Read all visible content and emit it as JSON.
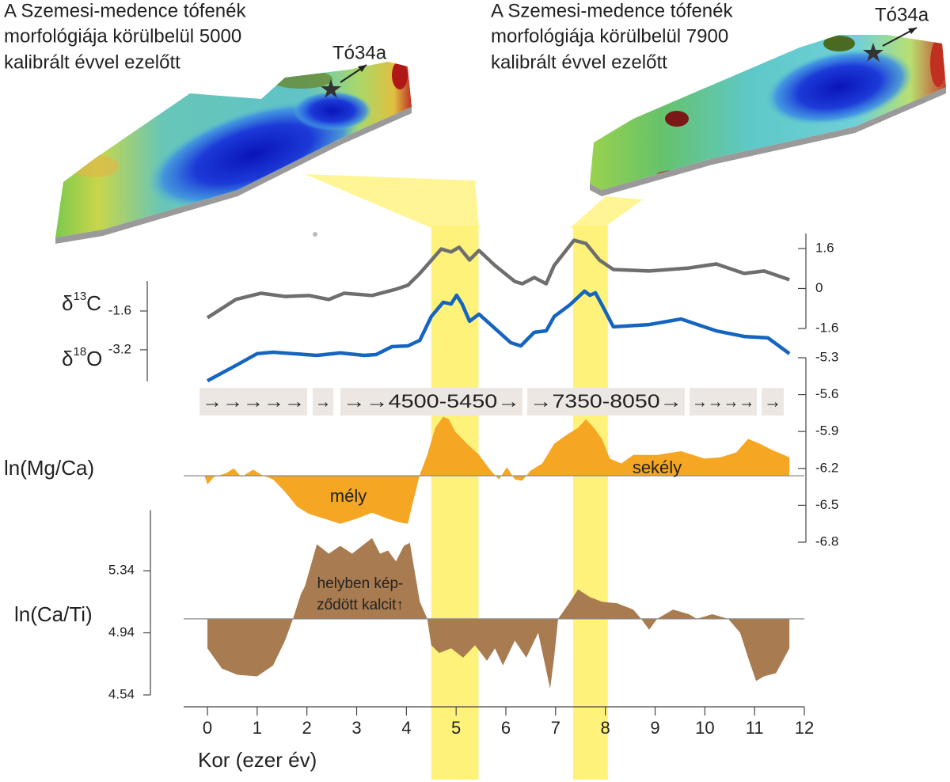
{
  "maps": [
    {
      "title": [
        "A Szemesi-medence tófenék",
        "morfológiája körülbelül 5000",
        "kalibrált évvel ezelőtt"
      ],
      "site": "Tó34a"
    },
    {
      "title": [
        "A Szemesi-medence tófenék",
        "morfológiája körülbelül 7900",
        "kalibrált évvel ezelőtt"
      ],
      "site": "Tó34a"
    }
  ],
  "chart_data": [
    {
      "type": "line",
      "ylabel": "δ",
      "ylabel_sup": "13",
      "ylabel_tail": "C",
      "color": "#6e6e6e",
      "x": [
        0,
        0.57,
        1.08,
        1.56,
        2.04,
        2.44,
        2.75,
        3.31,
        3.79,
        4.03,
        4.27,
        4.7,
        4.9,
        5.06,
        5.27,
        5.46,
        5.78,
        6.18,
        6.33,
        6.57,
        6.81,
        6.97,
        7.37,
        7.61,
        7.88,
        8.16,
        8.88,
        9.68,
        10.23,
        10.79,
        11.19,
        11.7
      ],
      "values": [
        -1.17,
        -0.44,
        -0.19,
        -0.32,
        -0.28,
        -0.44,
        -0.19,
        -0.28,
        -0.03,
        0.13,
        0.6,
        1.58,
        1.46,
        1.65,
        1.14,
        1.52,
        0.92,
        0.28,
        0.19,
        0.44,
        0.19,
        0.92,
        1.93,
        1.8,
        1.14,
        0.76,
        0.7,
        0.82,
        0.98,
        0.6,
        0.7,
        0.35
      ],
      "ylim": [
        -1.6,
        2.2
      ],
      "yticks": [
        -1.6,
        0,
        1.6
      ]
    },
    {
      "type": "line",
      "ylabel": "δ",
      "ylabel_sup": "18",
      "ylabel_tail": "O",
      "color": "#1565c0",
      "x": [
        0,
        0.57,
        1,
        1.32,
        1.72,
        2.2,
        2.67,
        3.15,
        3.39,
        3.71,
        4.03,
        4.27,
        4.5,
        4.74,
        4.9,
        5.01,
        5.12,
        5.27,
        5.46,
        5.78,
        6.1,
        6.3,
        6.57,
        6.81,
        6.97,
        7.29,
        7.58,
        7.69,
        7.8,
        7.93,
        8.16,
        8.88,
        9.52,
        10.23,
        10.79,
        11.27,
        11.7
      ],
      "values": [
        -4.48,
        -3.85,
        -3.36,
        -3.3,
        -3.36,
        -3.43,
        -3.33,
        -3.43,
        -3.4,
        -3.07,
        -3.04,
        -2.81,
        -1.83,
        -1.24,
        -1.31,
        -0.95,
        -1.31,
        -2.02,
        -1.73,
        -2.32,
        -2.91,
        -3.04,
        -2.48,
        -2.42,
        -1.83,
        -1.34,
        -0.78,
        -0.95,
        -0.85,
        -1.34,
        -2.25,
        -2.16,
        -1.93,
        -2.42,
        -2.65,
        -2.71,
        -3.36
      ],
      "ylim": [
        -4.5,
        -0.36
      ],
      "yticks": [
        -3.2,
        -1.6
      ]
    },
    {
      "type": "area",
      "ylabel": "ln(Mg/Ca)",
      "color": "#f5a623",
      "baseline": -6.26,
      "strip": [
        "→→→→→",
        "→",
        "→→4500-5450→",
        "→7350-8050→",
        "→→→→",
        "→"
      ],
      "annotations": [
        "mély",
        "sekély"
      ],
      "x": [
        -0.06,
        0,
        0.13,
        0.37,
        0.53,
        0.68,
        0.92,
        1.08,
        1.32,
        1.56,
        1.8,
        2.04,
        2.36,
        2.67,
        2.99,
        3.31,
        3.63,
        3.87,
        4.03,
        4.11,
        4.27,
        4.42,
        4.58,
        4.74,
        4.85,
        4.98,
        5.22,
        5.46,
        5.7,
        5.86,
        6.02,
        6.18,
        6.33,
        6.49,
        6.73,
        6.97,
        7.21,
        7.45,
        7.61,
        7.77,
        7.93,
        8.09,
        8.32,
        8.56,
        9.04,
        9.52,
        9.99,
        10.31,
        10.63,
        10.87,
        11.11,
        11.35,
        11.59,
        11.7
      ],
      "values": [
        -6.26,
        -6.33,
        -6.27,
        -6.24,
        -6.2,
        -6.27,
        -6.21,
        -6.25,
        -6.29,
        -6.39,
        -6.51,
        -6.57,
        -6.61,
        -6.65,
        -6.61,
        -6.56,
        -6.61,
        -6.64,
        -6.65,
        -6.51,
        -6.25,
        -6.09,
        -5.87,
        -5.78,
        -5.8,
        -5.9,
        -6.0,
        -6.09,
        -6.22,
        -6.29,
        -6.19,
        -6.29,
        -6.3,
        -6.22,
        -6.16,
        -6.0,
        -5.93,
        -5.87,
        -5.8,
        -5.87,
        -5.96,
        -6.12,
        -6.16,
        -6.09,
        -6.09,
        -6.06,
        -6.12,
        -6.11,
        -6.07,
        -5.96,
        -6.0,
        -6.05,
        -6.09,
        -6.11
      ],
      "ylim": [
        -6.8,
        -5.3
      ],
      "yticks": [
        -6.8,
        -6.5,
        -6.2,
        -5.9,
        -5.6,
        -5.3
      ]
    },
    {
      "type": "area",
      "ylabel": "ln(Ca/Ti)",
      "color": "#a87b50",
      "baseline": 5.03,
      "annotations": [
        "helyben kép-",
        "ződött kalcit↑"
      ],
      "highlights": [
        [
          4.5,
          5.45
        ],
        [
          7.35,
          8.05
        ]
      ],
      "highlight_color": "#fff27a",
      "x": [
        0,
        0.29,
        0.6,
        1,
        1.32,
        1.56,
        1.72,
        1.88,
        1.96,
        2.2,
        2.44,
        2.67,
        2.91,
        3.15,
        3.31,
        3.47,
        3.63,
        3.79,
        3.95,
        4.07,
        4.19,
        4.27,
        4.42,
        4.5,
        4.66,
        4.9,
        5.14,
        5.38,
        5.62,
        5.78,
        5.94,
        6.18,
        6.41,
        6.65,
        6.89,
        6.97,
        7.05,
        7.29,
        7.45,
        7.69,
        7.93,
        8.24,
        8.56,
        8.72,
        8.88,
        9.04,
        9.36,
        9.68,
        9.84,
        10.15,
        10.47,
        10.71,
        10.87,
        11.03,
        11.19,
        11.43,
        11.7
      ],
      "values": [
        4.84,
        4.71,
        4.67,
        4.66,
        4.73,
        4.89,
        5.03,
        5.19,
        5.24,
        5.51,
        5.45,
        5.5,
        5.45,
        5.51,
        5.55,
        5.45,
        5.47,
        5.4,
        5.5,
        5.52,
        5.29,
        5.14,
        5.03,
        4.86,
        4.81,
        4.84,
        4.78,
        4.86,
        4.76,
        4.84,
        4.73,
        4.89,
        4.78,
        4.94,
        4.58,
        4.78,
        5.03,
        5.14,
        5.22,
        5.17,
        5.14,
        5.13,
        5.09,
        5.03,
        4.96,
        5.03,
        5.09,
        5.06,
        5.03,
        5.06,
        5.03,
        4.94,
        4.78,
        4.63,
        4.66,
        4.68,
        4.84
      ],
      "ylim": [
        4.54,
        5.73
      ],
      "yticks": [
        4.54,
        4.94,
        5.34
      ],
      "xlim": [
        -0.5,
        12
      ],
      "xticks": [
        0,
        1,
        2,
        3,
        4,
        5,
        6,
        7,
        8,
        9,
        10,
        11,
        12
      ],
      "xlabel": "Kor (ezer év)"
    }
  ]
}
